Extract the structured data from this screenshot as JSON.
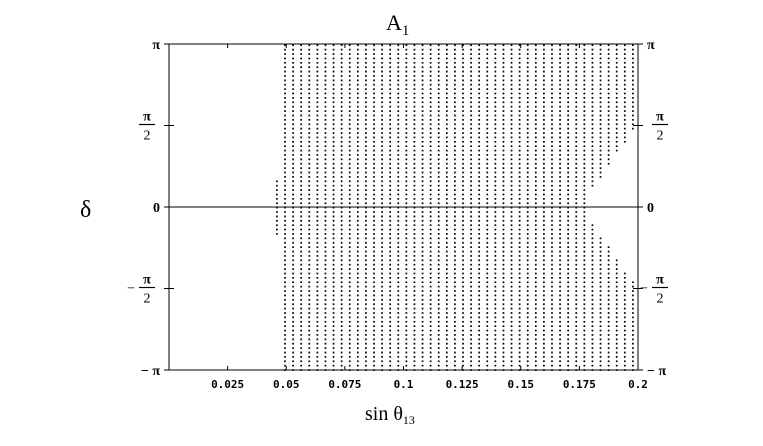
{
  "chart_data": {
    "type": "scatter",
    "title": {
      "main": "A",
      "sub": "1"
    },
    "xlabel": {
      "main": "sin θ",
      "sub": "13"
    },
    "ylabel": "δ",
    "xlim": [
      0,
      0.2
    ],
    "ylim": [
      -3.14159,
      3.14159
    ],
    "x_ticks": [
      {
        "value": 0.025,
        "label": "0.025"
      },
      {
        "value": 0.05,
        "label": "0.05"
      },
      {
        "value": 0.075,
        "label": "0.075"
      },
      {
        "value": 0.1,
        "label": "0.1"
      },
      {
        "value": 0.125,
        "label": "0.125"
      },
      {
        "value": 0.15,
        "label": "0.15"
      },
      {
        "value": 0.175,
        "label": "0.175"
      },
      {
        "value": 0.2,
        "label": "0.2"
      }
    ],
    "y_ticks": [
      {
        "value": 3.14159,
        "sign": "",
        "num": "π",
        "den": ""
      },
      {
        "value": 1.5708,
        "sign": "",
        "num": "π",
        "den": "2"
      },
      {
        "value": 0,
        "sign": "",
        "num": "0",
        "den": ""
      },
      {
        "value": -1.5708,
        "sign": "−",
        "num": "π",
        "den": "2"
      },
      {
        "value": -3.14159,
        "sign": "−",
        "num": "π",
        "den": ""
      }
    ],
    "zero_line": true,
    "grid": false,
    "allowed_region": {
      "description_points": "dense grid of allowed (sin θ13, δ) points",
      "x_start_full": 0.049,
      "x_end": 0.199,
      "x_step": 0.00345,
      "y_step": 0.0846,
      "near_zero_x_min": 0.046,
      "near_zero_abs_delta": 0.55,
      "boundary": [
        {
          "x": 0.178,
          "abs_delta_min": 0.0
        },
        {
          "x": 0.18,
          "abs_delta_min": 0.3
        },
        {
          "x": 0.185,
          "abs_delta_min": 0.6
        },
        {
          "x": 0.19,
          "abs_delta_min": 0.95
        },
        {
          "x": 0.195,
          "abs_delta_min": 1.3
        },
        {
          "x": 0.199,
          "abs_delta_min": 1.5
        }
      ]
    },
    "colors": {
      "points": "#000000",
      "axes": "#000000"
    }
  }
}
